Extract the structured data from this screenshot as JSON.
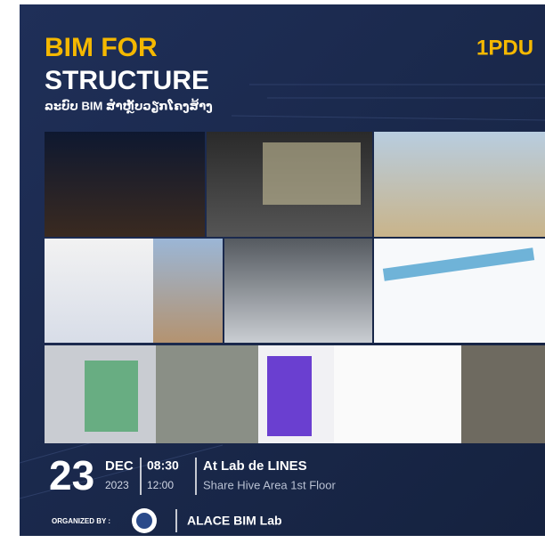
{
  "header": {
    "title_line1": "BIM FOR",
    "title_line2": "STRUCTURE",
    "subtitle": "ລະບົບ BIM ສຳຫຼັບວຽກໂຄງສ້າງ",
    "badge": "1PDU"
  },
  "event": {
    "day": "23",
    "month": "DEC",
    "year": "2023",
    "start_time": "08:30",
    "end_time": "12:00",
    "venue": "At Lab de LINES",
    "location": "Share Hive Area 1st Floor"
  },
  "footer": {
    "organized_label": "ORGANIZED BY :",
    "organizer": "ALACE BIM Lab"
  }
}
